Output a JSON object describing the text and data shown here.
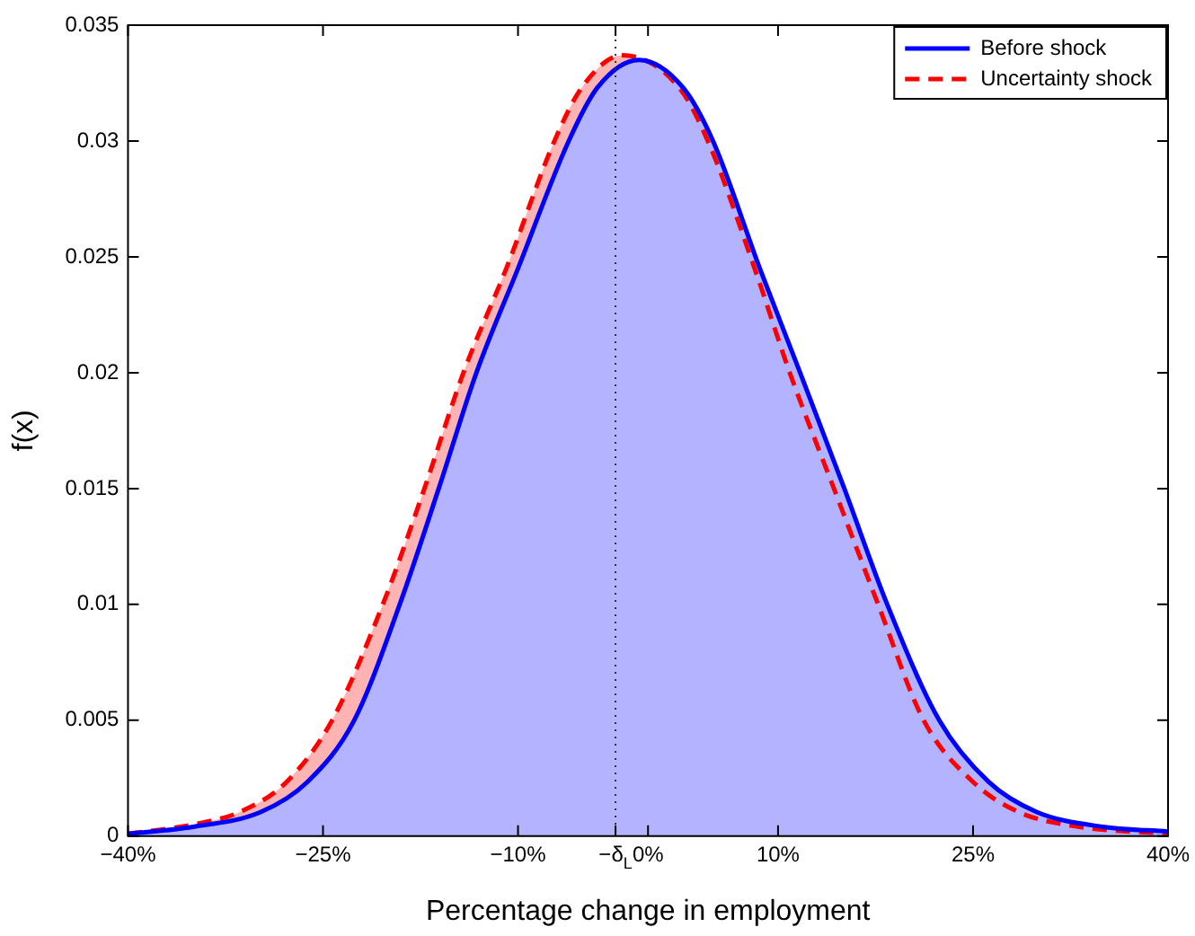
{
  "chart_data": {
    "type": "area",
    "xlabel": "Percentage change in employment",
    "ylabel": "f(x)",
    "legend": "top right",
    "grid": false,
    "xlim": [
      -40,
      40
    ],
    "ylim": [
      0,
      0.035
    ],
    "xticks": [
      {
        "value": -40,
        "label": "−40%"
      },
      {
        "value": -25,
        "label": "−25%"
      },
      {
        "value": -10,
        "label": "−10%"
      },
      {
        "value": -2.5,
        "label": "−δ$_{L}$"
      },
      {
        "value": 0,
        "label": "0%"
      },
      {
        "value": 10,
        "label": "10%"
      },
      {
        "value": 25,
        "label": "25%"
      },
      {
        "value": 40,
        "label": "40%"
      }
    ],
    "yticks": [
      0,
      0.005,
      0.01,
      0.015,
      0.02,
      0.025,
      0.03,
      0.035
    ],
    "ref_lines": [
      {
        "axis": "x",
        "value": -2.5,
        "color": "#333333",
        "line_style": "dotted"
      }
    ],
    "series": [
      {
        "name": "Before shock",
        "color": "#0000ff",
        "line_style": "solid",
        "x": [
          -40,
          -35,
          -29.8,
          -26.2,
          -22.6,
          -19.1,
          -16.1,
          -13.2,
          -10,
          -6.1,
          -3.9,
          -0.7,
          2.7,
          5.0,
          8.6,
          11.7,
          15.1,
          18.4,
          22.4,
          26.2,
          29.9,
          35,
          40
        ],
        "values": [
          0.0001,
          0.0004,
          0.00104,
          0.00234,
          0.005,
          0.01,
          0.015,
          0.02,
          0.0245,
          0.03,
          0.0323,
          0.0335,
          0.0323,
          0.03,
          0.0245,
          0.02,
          0.015,
          0.01,
          0.005,
          0.00234,
          0.00104,
          0.0004,
          0.0002
        ]
      },
      {
        "name": "Uncertainty shock",
        "color": "#ff0000",
        "line_style": "dashed",
        "x": [
          -40,
          -35,
          -31.4,
          -27.8,
          -24.3,
          -20.4,
          -17.2,
          -14.2,
          -10.9,
          -7.2,
          -5.1,
          -2.0,
          2.4,
          4.6,
          8.2,
          10.9,
          14.3,
          17.7,
          21.2,
          25.0,
          28.5,
          33.2,
          40
        ],
        "values": [
          0.0001,
          0.0005,
          0.00104,
          0.00234,
          0.005,
          0.01,
          0.015,
          0.02,
          0.0245,
          0.03,
          0.0323,
          0.0337,
          0.0323,
          0.03,
          0.0245,
          0.02,
          0.015,
          0.01,
          0.005,
          0.00234,
          0.00104,
          0.0004,
          0.0001
        ]
      }
    ]
  }
}
